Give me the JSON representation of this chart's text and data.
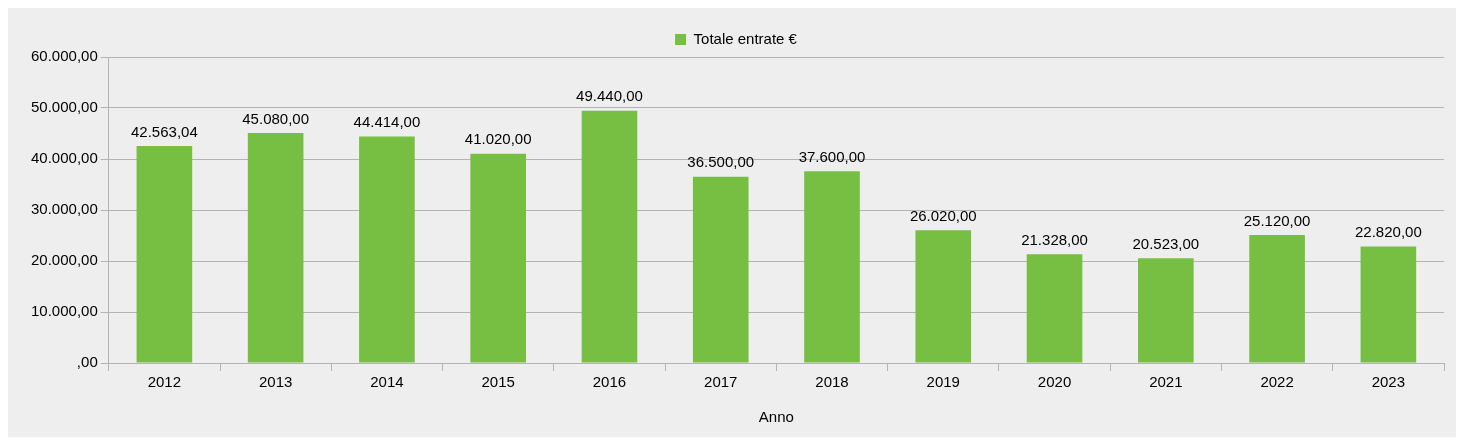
{
  "chart_data": {
    "type": "bar",
    "xlabel": "Anno",
    "categories": [
      "2012",
      "2013",
      "2014",
      "2015",
      "2016",
      "2017",
      "2018",
      "2019",
      "2020",
      "2021",
      "2022",
      "2023"
    ],
    "series": [
      {
        "name": "Totale entrate €",
        "color": "#77bf43",
        "values": [
          42563.04,
          45080,
          44414,
          41020,
          49440,
          36500,
          37600,
          26020,
          21328,
          20523,
          25120,
          22820
        ],
        "value_labels": [
          "42.563,04",
          "45.080,00",
          "44.414,00",
          "41.020,00",
          "49.440,00",
          "36.500,00",
          "37.600,00",
          "26.020,00",
          "21.328,00",
          "20.523,00",
          "25.120,00",
          "22.820,00"
        ]
      }
    ],
    "ylim": [
      0,
      60000
    ],
    "yticks": [
      {
        "value": 0,
        "label": ",00"
      },
      {
        "value": 10000,
        "label": "10.000,00"
      },
      {
        "value": 20000,
        "label": "20.000,00"
      },
      {
        "value": 30000,
        "label": "30.000,00"
      },
      {
        "value": 40000,
        "label": "40.000,00"
      },
      {
        "value": 50000,
        "label": "50.000,00"
      },
      {
        "value": 60000,
        "label": "60.000,00"
      }
    ],
    "grid": "y",
    "legend": "top"
  }
}
